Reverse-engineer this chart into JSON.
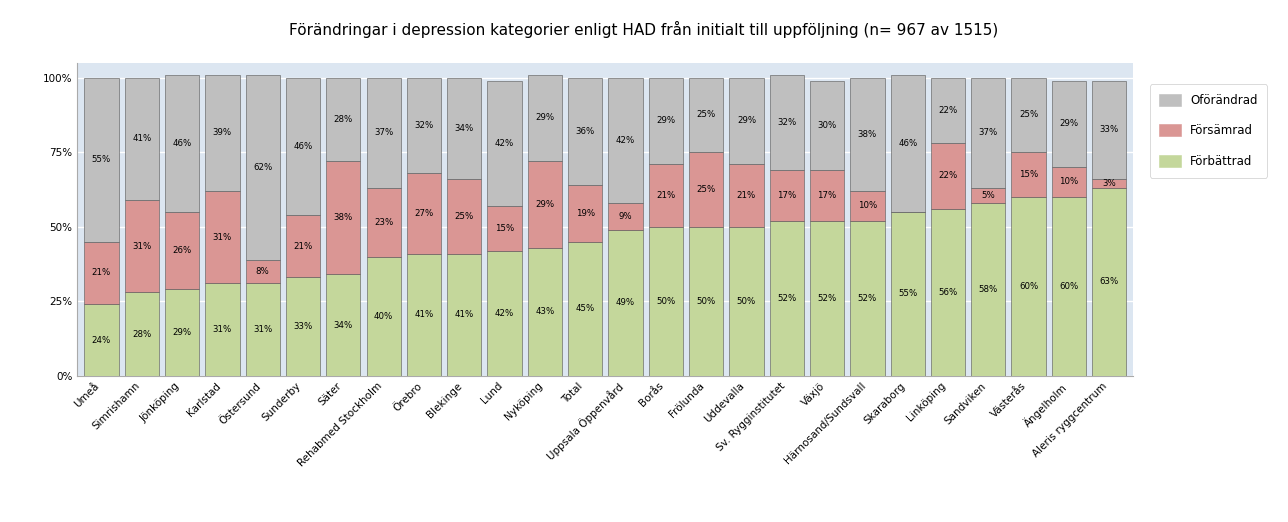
{
  "title": "Förändringar i depression kategorier enligt HAD från initialt till uppföljning (n= 967 av 1515)",
  "categories": [
    "Umeå",
    "Simrishamn",
    "Jönköping",
    "Karlstad",
    "Östersund",
    "Sunderby",
    "Säter",
    "Rehabmed Stockholm",
    "Örebro",
    "Blekinge",
    "Lund",
    "Nyköping",
    "Total",
    "Uppsala Öppenvård",
    "Borås",
    "Frölunda",
    "Uddevalla",
    "Sv. Rygginstitutet",
    "Växjö",
    "Härnosand/Sundsvall",
    "Skaraborg",
    "Linköping",
    "Sandviken",
    "Västerås",
    "Ängelholm",
    "Aleris ryggcentrum"
  ],
  "forbattrad": [
    24,
    28,
    29,
    31,
    31,
    33,
    34,
    40,
    41,
    41,
    42,
    43,
    45,
    49,
    50,
    50,
    50,
    52,
    52,
    52,
    55,
    56,
    58,
    60,
    60,
    63
  ],
  "forsamrad": [
    21,
    31,
    26,
    31,
    8,
    21,
    38,
    23,
    27,
    25,
    15,
    29,
    19,
    9,
    21,
    25,
    21,
    17,
    17,
    10,
    0,
    22,
    5,
    15,
    10,
    3
  ],
  "oforandrad": [
    55,
    41,
    46,
    39,
    62,
    46,
    28,
    37,
    32,
    34,
    42,
    29,
    36,
    42,
    29,
    25,
    29,
    32,
    30,
    38,
    46,
    22,
    37,
    25,
    29,
    33
  ],
  "color_forbattrad": "#c4d79b",
  "color_forsamrad": "#da9694",
  "color_oforandrad": "#bfbfbf",
  "yticks": [
    0,
    25,
    50,
    75,
    100
  ],
  "yticklabels": [
    "0%",
    "25%",
    "50%",
    "75%",
    "100%"
  ],
  "plot_bg_color": "#dce6f1",
  "fig_bg_color": "#ffffff",
  "title_fontsize": 11,
  "bar_width": 0.85,
  "label_fontsize": 6.2,
  "tick_fontsize": 7.5,
  "legend_fontsize": 8.5
}
